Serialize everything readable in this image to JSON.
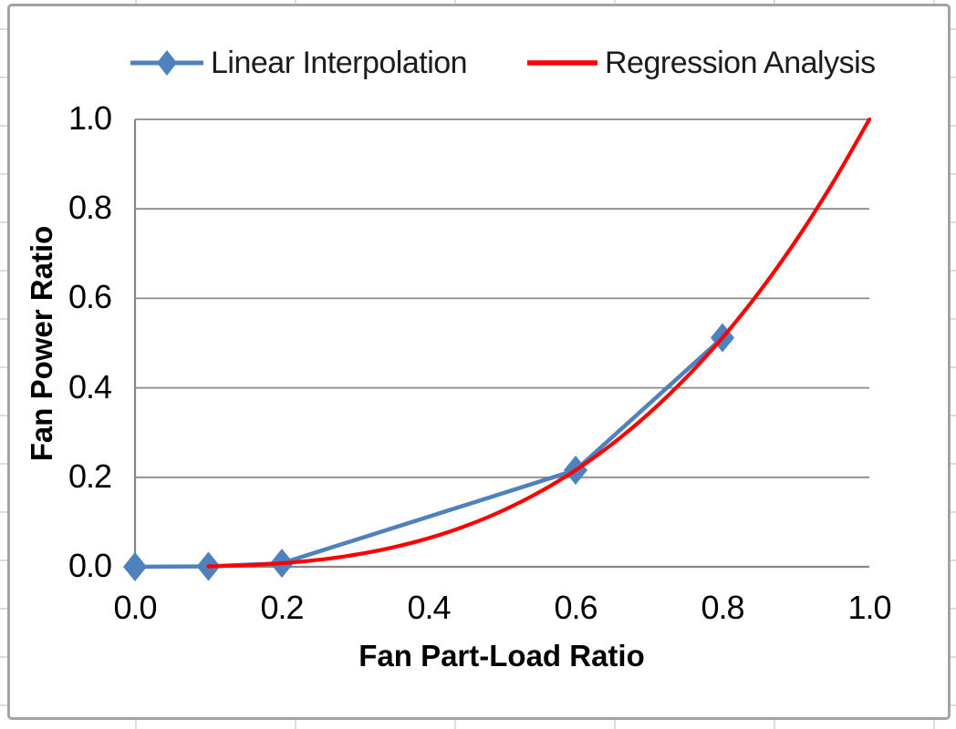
{
  "chart_data": {
    "type": "line",
    "title": "",
    "xlabel": "Fan Part-Load Ratio",
    "ylabel": "Fan Power Ratio",
    "xlim": [
      0.0,
      1.0
    ],
    "ylim": [
      0.0,
      1.0
    ],
    "x_ticks": [
      "0.0",
      "0.2",
      "0.4",
      "0.6",
      "0.8",
      "1.0"
    ],
    "y_ticks": [
      "0.0",
      "0.2",
      "0.4",
      "0.6",
      "0.8",
      "1.0"
    ],
    "grid": "horizontal-major",
    "legend_position": "top",
    "series": [
      {
        "name": "Linear Interpolation",
        "color": "#4F81BD",
        "marker": "diamond",
        "line_style": "solid",
        "x": [
          0.0,
          0.1,
          0.2,
          0.6,
          0.8
        ],
        "y": [
          0.0,
          0.001,
          0.008,
          0.216,
          0.512
        ]
      },
      {
        "name": "Regression Analysis",
        "color": "#FF0000",
        "marker": "none",
        "line_style": "solid",
        "equation": "y = x^3 (approx.)",
        "x": [
          0.1,
          0.15,
          0.2,
          0.25,
          0.3,
          0.35,
          0.4,
          0.45,
          0.5,
          0.55,
          0.6,
          0.65,
          0.7,
          0.75,
          0.8,
          0.85,
          0.9,
          0.95,
          1.0
        ],
        "y": [
          0.001,
          0.0034,
          0.008,
          0.0156,
          0.027,
          0.0429,
          0.064,
          0.0911,
          0.125,
          0.1664,
          0.216,
          0.2746,
          0.343,
          0.4219,
          0.512,
          0.6141,
          0.729,
          0.8574,
          1.0
        ]
      }
    ]
  },
  "colors": {
    "gridline": "#8a8a8a",
    "axis": "#878787",
    "chart_border": "#a3a3a3",
    "sheet_grid": "#d9dee3",
    "text": "#000000",
    "background": "#ffffff"
  }
}
